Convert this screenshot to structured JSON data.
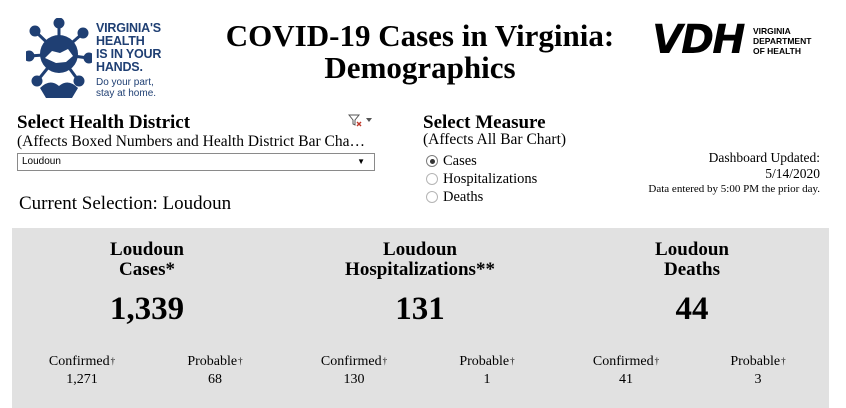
{
  "logo_left": {
    "line1": "VIRGINIA'S",
    "line2": "HEALTH",
    "line3": "IS IN YOUR",
    "line4": "HANDS.",
    "tag1": "Do your part,",
    "tag2": "stay at home.",
    "icon": "virus-hands-icon"
  },
  "title": {
    "line1": "COVID-19 Cases in Virginia:",
    "line2": "Demographics"
  },
  "vdh_logo": {
    "mark": "VDH",
    "line1": "VIRGINIA",
    "line2": "DEPARTMENT",
    "line3": "OF HEALTH"
  },
  "district_filter": {
    "title": "Select Health District",
    "subtitle": "(Affects Boxed Numbers and Health District Bar Cha…",
    "selected": "Loudoun",
    "icons": [
      "clear-filter-icon",
      "chevron-down-icon"
    ]
  },
  "current_selection": "Current Selection: Loudoun",
  "measure": {
    "title": "Select Measure",
    "subtitle": "(Affects All Bar Chart)",
    "options": [
      {
        "label": "Cases",
        "selected": true
      },
      {
        "label": "Hospitalizations",
        "selected": false
      },
      {
        "label": "Deaths",
        "selected": false
      }
    ]
  },
  "updated": {
    "label": "Dashboard Updated:",
    "date": "5/14/2020",
    "note": "Data entered by 5:00 PM the prior day."
  },
  "summary": {
    "background": "#e1e1e1",
    "columns": [
      {
        "head1": "Loudoun",
        "head2": "Cases*",
        "total": "1,339",
        "confirmed_label": "Confirmed",
        "confirmed": "1,271",
        "probable_label": "Probable",
        "probable": "68"
      },
      {
        "head1": "Loudoun",
        "head2": "Hospitalizations**",
        "total": "131",
        "confirmed_label": "Confirmed",
        "confirmed": "130",
        "probable_label": "Probable",
        "probable": "1"
      },
      {
        "head1": "Loudoun",
        "head2": "Deaths",
        "total": "44",
        "confirmed_label": "Confirmed",
        "confirmed": "41",
        "probable_label": "Probable",
        "probable": "3"
      }
    ],
    "dagger": "†"
  },
  "colors": {
    "logo_blue": "#1f3f73",
    "panel_gray": "#e1e1e1"
  }
}
